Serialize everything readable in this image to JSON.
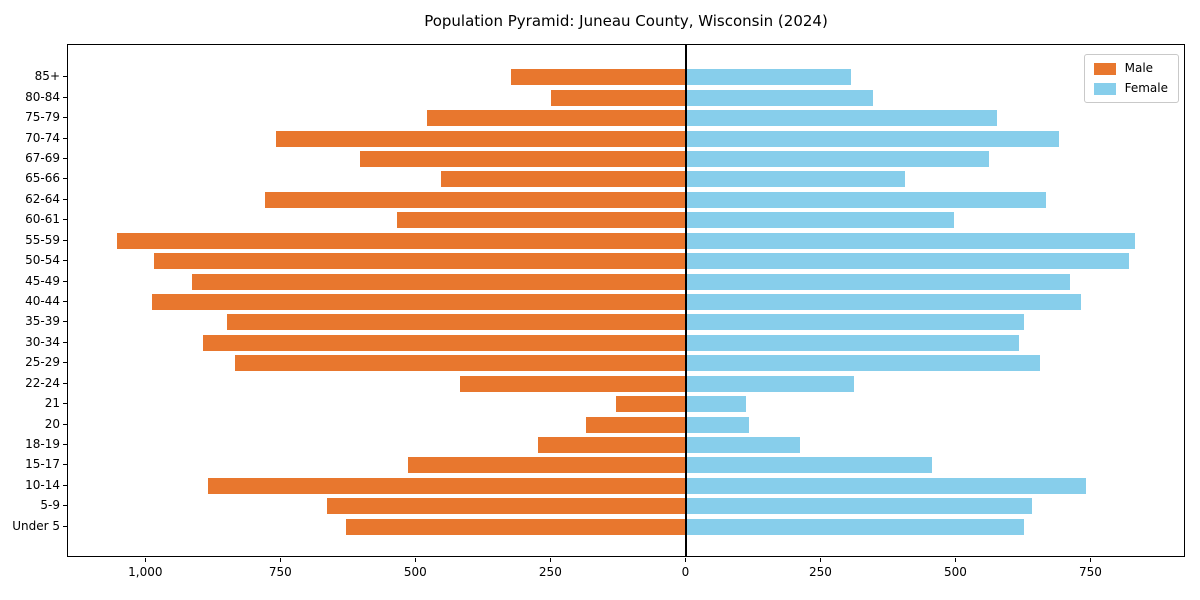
{
  "title": "Population Pyramid: Juneau County, Wisconsin (2024)",
  "colors": {
    "male": "#e8772e",
    "female": "#87ceeb",
    "axis": "#000000"
  },
  "chart_data": {
    "type": "bar",
    "subtype": "population-pyramid",
    "orientation": "horizontal",
    "title": "Population Pyramid: Juneau County, Wisconsin (2024)",
    "categories": [
      "85+",
      "80-84",
      "75-79",
      "70-74",
      "67-69",
      "65-66",
      "62-64",
      "60-61",
      "55-59",
      "50-54",
      "45-49",
      "40-44",
      "35-39",
      "30-34",
      "25-29",
      "22-24",
      "21",
      "20",
      "18-19",
      "15-17",
      "10-14",
      "5-9",
      "Under 5"
    ],
    "series": [
      {
        "name": "Male",
        "color": "#e8772e",
        "direction": "left",
        "values": [
          325,
          250,
          480,
          760,
          605,
          455,
          780,
          535,
          1055,
          985,
          915,
          990,
          850,
          895,
          835,
          420,
          130,
          185,
          275,
          515,
          885,
          665,
          630
        ]
      },
      {
        "name": "Female",
        "color": "#87ceeb",
        "direction": "right",
        "values": [
          305,
          345,
          575,
          690,
          560,
          405,
          665,
          495,
          830,
          820,
          710,
          730,
          625,
          615,
          655,
          310,
          110,
          115,
          210,
          455,
          740,
          640,
          625
        ]
      }
    ],
    "xlabel": "",
    "ylabel": "",
    "xlim": [
      -1145,
      925
    ],
    "x_ticks": [
      -1000,
      -750,
      -500,
      -250,
      0,
      250,
      500,
      750
    ],
    "x_tick_labels": [
      "1,000",
      "750",
      "500",
      "250",
      "0",
      "250",
      "500",
      "750"
    ],
    "legend_position": "upper right",
    "grid": false
  }
}
